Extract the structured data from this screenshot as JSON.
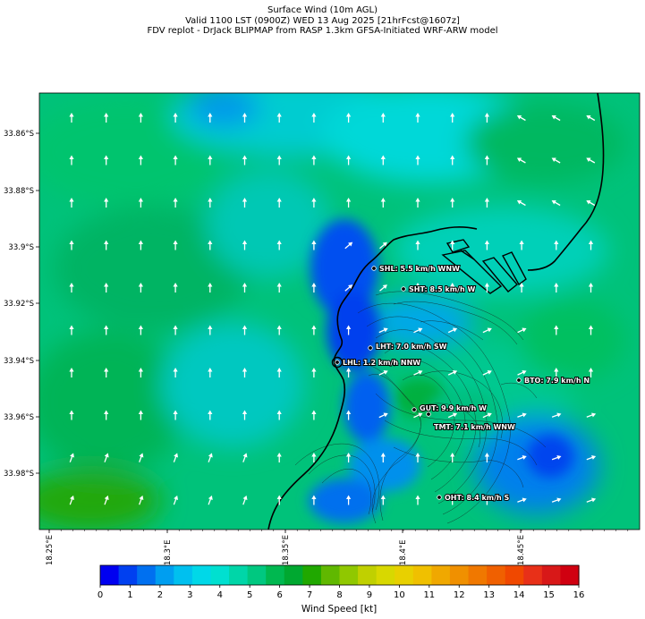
{
  "title": {
    "line1": "Surface Wind (10m AGL)",
    "line2": "Valid 1100 LST (0900Z) WED 13 Aug 2025 [21hrFcst@1607z]",
    "line3": "FDV replot - DrJack BLIPMAP from RASP 1.3km GFSA-Initiated WRF-ARW model"
  },
  "axes": {
    "lat_ticks": [
      "33.86°S",
      "33.88°S",
      "33.9°S",
      "33.92°S",
      "33.94°S",
      "33.96°S",
      "33.98°S"
    ],
    "lon_ticks": [
      "18.25°E",
      "18.3°E",
      "18.35°E",
      "18.4°E",
      "18.45°E"
    ]
  },
  "stations": [
    {
      "label": "SHL: 5.5 km/h WNW"
    },
    {
      "label": "SHT: 8.5 km/h W"
    },
    {
      "label": "LHT: 7.0 km/h SW"
    },
    {
      "label": "LHL: 1.2 km/h NNW"
    },
    {
      "label": "BTO: 7.9 km/h N"
    },
    {
      "label": "GUT: 9.9 km/h W"
    },
    {
      "label": "TMT: 7.1 km/h WNW"
    },
    {
      "label": "OHT: 8.4 km/h S"
    }
  ],
  "colorbar": {
    "label": "Wind Speed [kt]",
    "min": 0,
    "max": 16,
    "ticks": [
      "0",
      "1",
      "2",
      "3",
      "4",
      "5",
      "6",
      "7",
      "8",
      "9",
      "10",
      "11",
      "12",
      "13",
      "14",
      "15",
      "16"
    ],
    "colors": [
      "#0000f0",
      "#0040f0",
      "#0070f0",
      "#009ef0",
      "#00c0ef",
      "#00d8e8",
      "#00e0d0",
      "#00d6a8",
      "#00c880",
      "#00b850",
      "#00a830",
      "#20a800",
      "#60b800",
      "#90c800",
      "#c0d000",
      "#d8d800",
      "#e8d000",
      "#f0c000",
      "#f0a800",
      "#f09000",
      "#f07800",
      "#f06000",
      "#f04800",
      "#e83018",
      "#d81818",
      "#d00010"
    ]
  }
}
